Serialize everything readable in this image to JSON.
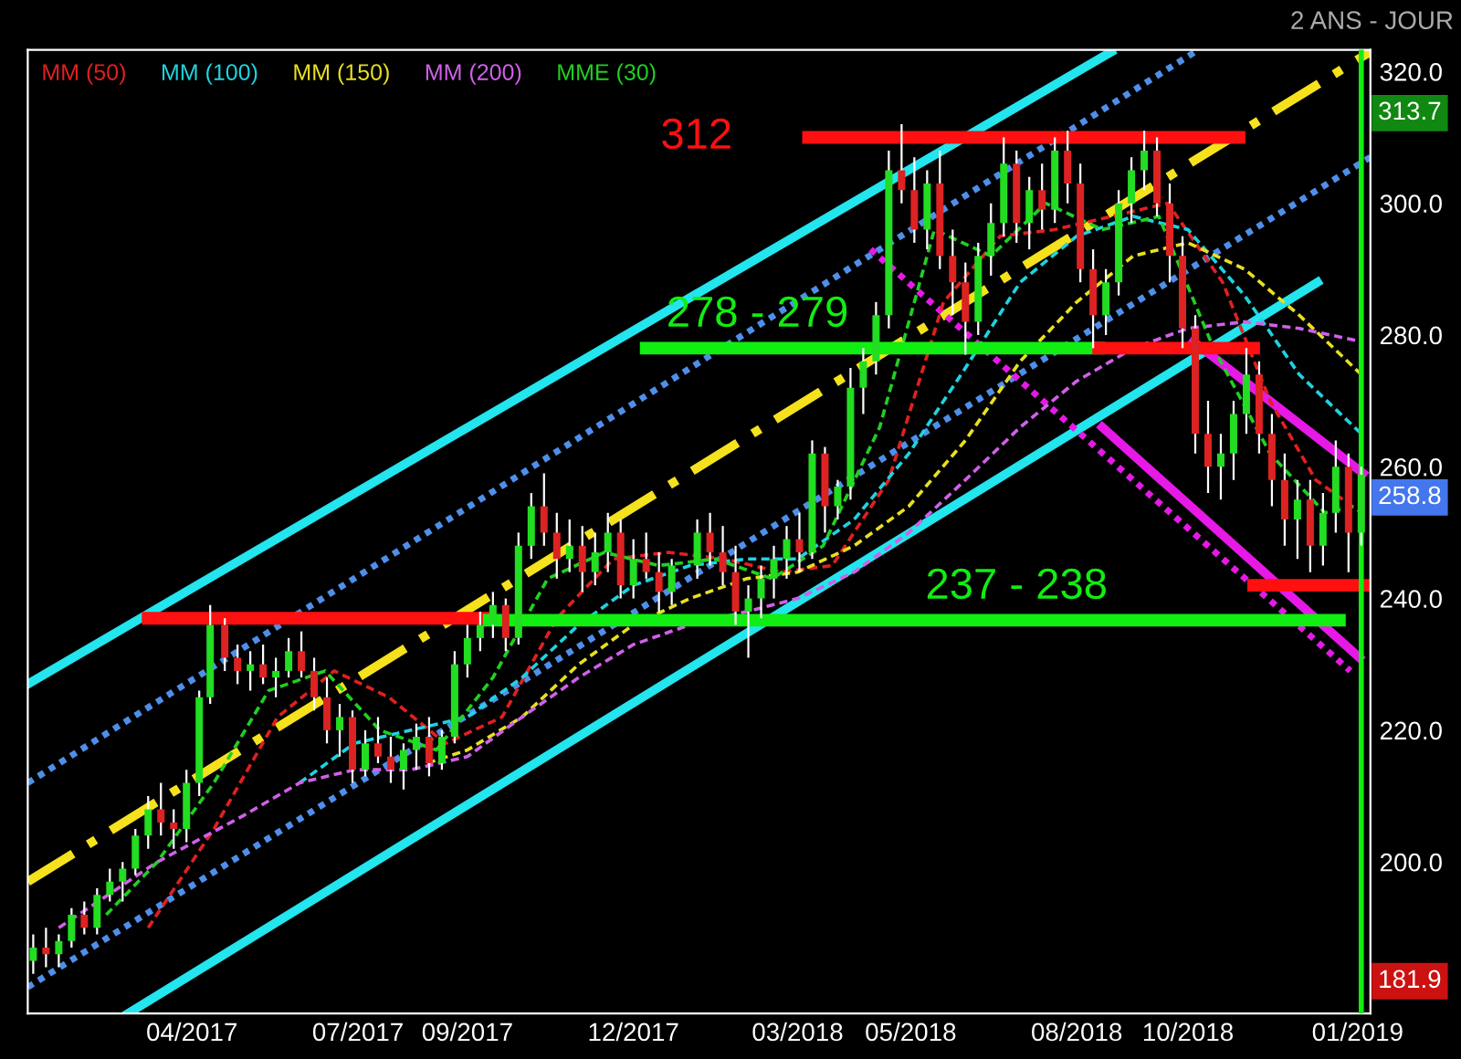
{
  "chart_data": {
    "type": "candlestick",
    "subtitle": "2 ANS - JOUR",
    "x": [
      "2017-01-06",
      "2017-01-13",
      "2017-01-20",
      "2017-01-27",
      "2017-02-03",
      "2017-02-10",
      "2017-02-17",
      "2017-02-24",
      "2017-03-03",
      "2017-03-10",
      "2017-03-17",
      "2017-03-24",
      "2017-03-31",
      "2017-04-07",
      "2017-04-13",
      "2017-04-21",
      "2017-04-28",
      "2017-05-05",
      "2017-05-12",
      "2017-05-19",
      "2017-05-26",
      "2017-06-02",
      "2017-06-09",
      "2017-06-16",
      "2017-06-23",
      "2017-06-30",
      "2017-07-07",
      "2017-07-14",
      "2017-07-21",
      "2017-07-28",
      "2017-08-04",
      "2017-08-11",
      "2017-08-18",
      "2017-08-25",
      "2017-09-01",
      "2017-09-08",
      "2017-09-15",
      "2017-09-22",
      "2017-09-29",
      "2017-10-06",
      "2017-10-13",
      "2017-10-20",
      "2017-10-27",
      "2017-11-03",
      "2017-11-10",
      "2017-11-17",
      "2017-11-24",
      "2017-12-01",
      "2017-12-08",
      "2017-12-15",
      "2017-12-22",
      "2018-01-05",
      "2018-01-12",
      "2018-01-19",
      "2018-01-26",
      "2018-02-02",
      "2018-02-09",
      "2018-02-16",
      "2018-02-23",
      "2018-03-02",
      "2018-03-09",
      "2018-03-16",
      "2018-03-23",
      "2018-03-30",
      "2018-04-06",
      "2018-04-13",
      "2018-04-20",
      "2018-04-27",
      "2018-05-04",
      "2018-05-11",
      "2018-05-18",
      "2018-05-25",
      "2018-06-01",
      "2018-06-08",
      "2018-06-15",
      "2018-06-22",
      "2018-06-29",
      "2018-07-06",
      "2018-07-13",
      "2018-07-20",
      "2018-07-27",
      "2018-08-03",
      "2018-08-10",
      "2018-08-17",
      "2018-08-24",
      "2018-08-31",
      "2018-09-07",
      "2018-09-14",
      "2018-09-21",
      "2018-09-28",
      "2018-10-05",
      "2018-10-12",
      "2018-10-19",
      "2018-10-26",
      "2018-11-02",
      "2018-11-09",
      "2018-11-16",
      "2018-11-23",
      "2018-11-30",
      "2018-12-07",
      "2018-12-14",
      "2018-12-21",
      "2018-12-28",
      "2019-01-04"
    ],
    "ohlc": [
      [
        185,
        189,
        183,
        187
      ],
      [
        187,
        190,
        184,
        186
      ],
      [
        186,
        189,
        184,
        188
      ],
      [
        188,
        193,
        187,
        192
      ],
      [
        192,
        194,
        189,
        190
      ],
      [
        190,
        196,
        189,
        195
      ],
      [
        195,
        199,
        194,
        197
      ],
      [
        197,
        200,
        194,
        199
      ],
      [
        199,
        205,
        198,
        204
      ],
      [
        204,
        210,
        202,
        208
      ],
      [
        208,
        212,
        204,
        206
      ],
      [
        206,
        208,
        202,
        205
      ],
      [
        205,
        214,
        203,
        212
      ],
      [
        212,
        226,
        210,
        225
      ],
      [
        225,
        239,
        224,
        236
      ],
      [
        236,
        237,
        229,
        231
      ],
      [
        231,
        233,
        227,
        229
      ],
      [
        229,
        232,
        226,
        230
      ],
      [
        230,
        233,
        227,
        228
      ],
      [
        228,
        231,
        225,
        229
      ],
      [
        229,
        234,
        228,
        232
      ],
      [
        232,
        235,
        228,
        229
      ],
      [
        229,
        231,
        223,
        225
      ],
      [
        225,
        228,
        218,
        220
      ],
      [
        220,
        224,
        216,
        222
      ],
      [
        222,
        223,
        212,
        214
      ],
      [
        214,
        220,
        213,
        218
      ],
      [
        218,
        222,
        215,
        216
      ],
      [
        216,
        219,
        212,
        214
      ],
      [
        214,
        218,
        211,
        217
      ],
      [
        217,
        221,
        214,
        219
      ],
      [
        219,
        222,
        213,
        215
      ],
      [
        215,
        220,
        214,
        219
      ],
      [
        219,
        232,
        218,
        230
      ],
      [
        230,
        236,
        228,
        234
      ],
      [
        234,
        238,
        232,
        236
      ],
      [
        236,
        241,
        234,
        239
      ],
      [
        239,
        240,
        232,
        234
      ],
      [
        234,
        250,
        233,
        248
      ],
      [
        248,
        256,
        246,
        254
      ],
      [
        254,
        259,
        248,
        250
      ],
      [
        250,
        253,
        243,
        246
      ],
      [
        246,
        252,
        244,
        248
      ],
      [
        248,
        251,
        241,
        244
      ],
      [
        244,
        250,
        242,
        247
      ],
      [
        247,
        253,
        244,
        250
      ],
      [
        250,
        252,
        240,
        242
      ],
      [
        242,
        249,
        240,
        246
      ],
      [
        246,
        250,
        243,
        244
      ],
      [
        244,
        247,
        238,
        241
      ],
      [
        241,
        246,
        239,
        245
      ],
      [
        245,
        252,
        243,
        250
      ],
      [
        250,
        253,
        245,
        247
      ],
      [
        247,
        251,
        242,
        244
      ],
      [
        244,
        248,
        236,
        238
      ],
      [
        238,
        242,
        231,
        240
      ],
      [
        240,
        245,
        237,
        243
      ],
      [
        243,
        248,
        240,
        246
      ],
      [
        246,
        251,
        243,
        249
      ],
      [
        249,
        253,
        244,
        247
      ],
      [
        247,
        264,
        246,
        262
      ],
      [
        262,
        263,
        250,
        254
      ],
      [
        254,
        258,
        252,
        257
      ],
      [
        257,
        275,
        255,
        272
      ],
      [
        272,
        278,
        268,
        276
      ],
      [
        276,
        285,
        274,
        283
      ],
      [
        283,
        308,
        281,
        305
      ],
      [
        305,
        312,
        300,
        302
      ],
      [
        302,
        307,
        294,
        296
      ],
      [
        296,
        305,
        293,
        303
      ],
      [
        303,
        308,
        290,
        292
      ],
      [
        292,
        296,
        283,
        288
      ],
      [
        288,
        291,
        277,
        282
      ],
      [
        282,
        294,
        280,
        292
      ],
      [
        292,
        300,
        289,
        297
      ],
      [
        297,
        310,
        295,
        306
      ],
      [
        306,
        308,
        294,
        297
      ],
      [
        297,
        304,
        293,
        302
      ],
      [
        302,
        306,
        296,
        299
      ],
      [
        299,
        310,
        297,
        308
      ],
      [
        308,
        311,
        300,
        303
      ],
      [
        303,
        306,
        288,
        290
      ],
      [
        290,
        293,
        278,
        283
      ],
      [
        283,
        290,
        280,
        288
      ],
      [
        288,
        302,
        286,
        300
      ],
      [
        300,
        307,
        297,
        305
      ],
      [
        305,
        311,
        302,
        308
      ],
      [
        308,
        310,
        298,
        300
      ],
      [
        300,
        303,
        288,
        292
      ],
      [
        292,
        295,
        278,
        281
      ],
      [
        281,
        283,
        262,
        265
      ],
      [
        265,
        270,
        256,
        260
      ],
      [
        260,
        265,
        255,
        262
      ],
      [
        262,
        270,
        258,
        268
      ],
      [
        268,
        278,
        265,
        274
      ],
      [
        274,
        276,
        262,
        265
      ],
      [
        265,
        268,
        254,
        258
      ],
      [
        258,
        262,
        248,
        252
      ],
      [
        252,
        258,
        246,
        255
      ],
      [
        255,
        258,
        244,
        248
      ],
      [
        248,
        256,
        245,
        253
      ],
      [
        253,
        264,
        250,
        260
      ],
      [
        260,
        262,
        244,
        250
      ],
      [
        250,
        260,
        248,
        258.8
      ]
    ],
    "series": [
      {
        "type": "line",
        "line_style": "solid",
        "color": "#22e5ee",
        "x": [
          "2017-01-03",
          "2018-08-20"
        ],
        "values": [
          227,
          323
        ]
      },
      {
        "type": "line",
        "line_style": "solid",
        "color": "#22e5ee",
        "x": [
          "2017-02-27",
          "2018-12-11"
        ],
        "values": [
          177,
          288
        ]
      },
      {
        "type": "line",
        "line_style": "dotted",
        "color": "#4f8fea",
        "x": [
          "2017-01-03",
          "2018-10-05"
        ],
        "values": [
          212,
          323
        ]
      },
      {
        "type": "line",
        "line_style": "dotted",
        "color": "#4f8fea",
        "x": [
          "2017-01-03",
          "2019-01-09"
        ],
        "values": [
          181,
          307
        ]
      },
      {
        "type": "line",
        "line_style": "dashdot",
        "color": "#f5e21c",
        "x": [
          "2017-01-03",
          "2019-01-09"
        ],
        "values": [
          197,
          323
        ]
      },
      {
        "type": "line",
        "line_style": "solid",
        "color": "#e619e6",
        "x": [
          "2018-10-04",
          "2019-01-05"
        ],
        "values": [
          279,
          259
        ]
      },
      {
        "type": "line",
        "line_style": "solid",
        "color": "#e619e6",
        "x": [
          "2018-08-15",
          "2019-01-03"
        ],
        "values": [
          266,
          231
        ]
      },
      {
        "type": "line",
        "line_style": "dotted",
        "color": "#e619e6",
        "x": [
          "2018-04-10",
          "2018-12-29"
        ],
        "values": [
          293,
          229
        ]
      },
      {
        "name": "MM (50)",
        "type": "line",
        "line_style": "dashed",
        "color": "#e02020",
        "x": [
          "2017-03-10",
          "2017-04-15",
          "2017-05-20",
          "2017-06-20",
          "2017-07-20",
          "2017-08-20",
          "2017-09-20",
          "2017-10-20",
          "2017-11-20",
          "2017-12-20",
          "2018-01-20",
          "2018-02-20",
          "2018-03-20",
          "2018-04-20",
          "2018-05-20",
          "2018-06-20",
          "2018-07-20",
          "2018-08-20",
          "2018-09-20",
          "2018-10-20",
          "2018-11-15",
          "2018-12-10",
          "2019-01-04"
        ],
        "values": [
          190,
          205,
          222,
          229,
          225,
          218,
          222,
          237,
          246,
          247,
          246,
          244,
          245,
          258,
          285,
          295,
          296,
          298,
          300,
          288,
          270,
          258,
          253
        ]
      },
      {
        "name": "MM (100)",
        "type": "line",
        "line_style": "dashed",
        "color": "#1fd3e0",
        "x": [
          "2017-06-01",
          "2017-07-01",
          "2017-08-01",
          "2017-09-01",
          "2017-10-01",
          "2017-11-01",
          "2017-12-01",
          "2018-01-01",
          "2018-02-01",
          "2018-03-01",
          "2018-04-01",
          "2018-05-01",
          "2018-06-01",
          "2018-07-01",
          "2018-08-01",
          "2018-09-01",
          "2018-10-01",
          "2018-11-01",
          "2018-12-01",
          "2019-01-04"
        ],
        "values": [
          212,
          218,
          220,
          222,
          228,
          236,
          242,
          245,
          246,
          246,
          252,
          262,
          275,
          288,
          295,
          298,
          296,
          286,
          274,
          265
        ]
      },
      {
        "name": "MM (150)",
        "type": "line",
        "line_style": "dashed",
        "color": "#e8e020",
        "x": [
          "2017-08-10",
          "2017-09-01",
          "2017-10-01",
          "2017-11-01",
          "2017-12-01",
          "2018-01-01",
          "2018-02-01",
          "2018-03-01",
          "2018-04-01",
          "2018-05-01",
          "2018-06-01",
          "2018-07-01",
          "2018-08-01",
          "2018-09-01",
          "2018-10-01",
          "2018-11-01",
          "2018-12-01",
          "2019-01-04"
        ],
        "values": [
          215,
          217,
          222,
          230,
          236,
          240,
          243,
          244,
          248,
          254,
          264,
          276,
          285,
          292,
          294,
          290,
          283,
          274
        ]
      },
      {
        "name": "MM (200)",
        "type": "line",
        "line_style": "dashed",
        "color": "#d060e8",
        "x": [
          "2017-01-20",
          "2017-03-15",
          "2017-05-01",
          "2017-06-01",
          "2017-07-01",
          "2017-08-01",
          "2017-09-01",
          "2017-10-01",
          "2017-11-01",
          "2017-12-01",
          "2018-01-01",
          "2018-02-01",
          "2018-03-01",
          "2018-04-01",
          "2018-05-01",
          "2018-06-01",
          "2018-07-01",
          "2018-08-01",
          "2018-09-01",
          "2018-10-01",
          "2018-11-01",
          "2018-12-01",
          "2019-01-04"
        ],
        "values": [
          190,
          200,
          207,
          212,
          214,
          214,
          216,
          222,
          228,
          233,
          236,
          238,
          240,
          244,
          250,
          258,
          266,
          273,
          278,
          281,
          282,
          281,
          279
        ]
      },
      {
        "name": "MME (30)",
        "type": "line",
        "line_style": "dashed",
        "color": "#20d020",
        "x": [
          "2017-02-15",
          "2017-03-15",
          "2017-04-15",
          "2017-05-15",
          "2017-06-15",
          "2017-07-15",
          "2017-08-15",
          "2017-09-15",
          "2017-10-15",
          "2017-11-15",
          "2017-12-15",
          "2018-01-15",
          "2018-02-15",
          "2018-03-15",
          "2018-04-15",
          "2018-05-15",
          "2018-06-15",
          "2018-07-15",
          "2018-08-15",
          "2018-09-15",
          "2018-10-15",
          "2018-11-15",
          "2018-12-15",
          "2018-12-31"
        ],
        "values": [
          192,
          200,
          212,
          226,
          229,
          220,
          217,
          228,
          243,
          247,
          245,
          246,
          243,
          248,
          266,
          296,
          292,
          300,
          296,
          298,
          278,
          262,
          253,
          254
        ]
      },
      {
        "type": "line",
        "line_style": "solid",
        "color": "#ff1010",
        "x": [
          "2018-03-07",
          "2018-10-29"
        ],
        "values": [
          310,
          310
        ]
      },
      {
        "type": "line",
        "line_style": "solid",
        "color": "#11ee11",
        "x": [
          "2017-12-08",
          "2018-08-13"
        ],
        "values": [
          278,
          278
        ]
      },
      {
        "type": "line",
        "line_style": "solid",
        "color": "#ff1010",
        "x": [
          "2018-08-13",
          "2018-11-06"
        ],
        "values": [
          278,
          278
        ]
      },
      {
        "type": "line",
        "line_style": "solid",
        "color": "#ff1010",
        "x": [
          "2017-03-10",
          "2017-09-13"
        ],
        "values": [
          237,
          237
        ]
      },
      {
        "type": "line",
        "line_style": "solid",
        "color": "#11ee11",
        "x": [
          "2017-09-13",
          "2018-12-23"
        ],
        "values": [
          236.7,
          236.7
        ]
      },
      {
        "type": "line",
        "line_style": "solid",
        "color": "#ff1010",
        "x": [
          "2018-11-06",
          "2019-01-09"
        ],
        "values": [
          242,
          242
        ]
      }
    ],
    "ref_lines": [
      {
        "axis": "x",
        "value": "2019-01-04",
        "color": "#11ee11"
      }
    ],
    "annotations": [
      {
        "text": "312",
        "x": "2018-03-07",
        "y": 310
      },
      {
        "text": "278 - 279",
        "x": "2018-02-07",
        "y": 278
      },
      {
        "text": "237 - 238",
        "x": "2018-06-29",
        "y": 236.7
      },
      {
        "text": "313.7",
        "x": "2019-01-09",
        "y": 313.7
      },
      {
        "text": "258.8",
        "x": "2019-01-09",
        "y": 258.8
      },
      {
        "text": "181.9",
        "x": "2019-01-09",
        "y": 181.9
      }
    ],
    "xlim": [
      "2017-01-03",
      "2019-01-09"
    ],
    "xticks": [
      {
        "value": "2017-04-03",
        "label": "04/2017"
      },
      {
        "value": "2017-07-03",
        "label": "07/2017"
      },
      {
        "value": "2017-09-01",
        "label": "09/2017"
      },
      {
        "value": "2017-12-01",
        "label": "12/2017"
      },
      {
        "value": "2018-03-01",
        "label": "03/2018"
      },
      {
        "value": "2018-05-02",
        "label": "05/2018"
      },
      {
        "value": "2018-08-01",
        "label": "08/2018"
      },
      {
        "value": "2018-10-01",
        "label": "10/2018"
      },
      {
        "value": "2019-01-02",
        "label": "01/2019"
      }
    ],
    "ylim": [
      177,
      323.3
    ],
    "yticks": [
      {
        "value": 200,
        "label": "200.0"
      },
      {
        "value": 220,
        "label": "220.0"
      },
      {
        "value": 240,
        "label": "240.0"
      },
      {
        "value": 260,
        "label": "260.0"
      },
      {
        "value": 280,
        "label": "280.0"
      },
      {
        "value": 300,
        "label": "300.0"
      },
      {
        "value": 320,
        "label": "320.0"
      }
    ],
    "legend": "top left",
    "grid": false
  }
}
